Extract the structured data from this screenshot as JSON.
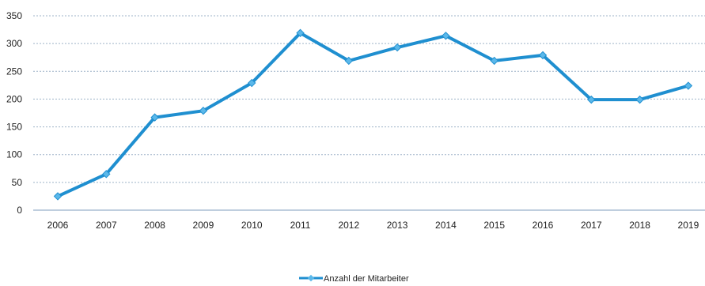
{
  "chart_data": {
    "type": "line",
    "categories": [
      "2006",
      "2007",
      "2008",
      "2009",
      "2010",
      "2011",
      "2012",
      "2013",
      "2014",
      "2015",
      "2016",
      "2017",
      "2018",
      "2019"
    ],
    "series": [
      {
        "name": "Anzahl der Mitarbeiter",
        "values": [
          25,
          65,
          167,
          179,
          229,
          319,
          269,
          293,
          314,
          269,
          279,
          199,
          199,
          224
        ],
        "color": "#1f8fd0"
      }
    ],
    "yticks": [
      0,
      50,
      100,
      150,
      200,
      250,
      300,
      350
    ],
    "ylim": [
      0,
      350
    ],
    "grid": true,
    "legend_position": "bottom-center"
  }
}
